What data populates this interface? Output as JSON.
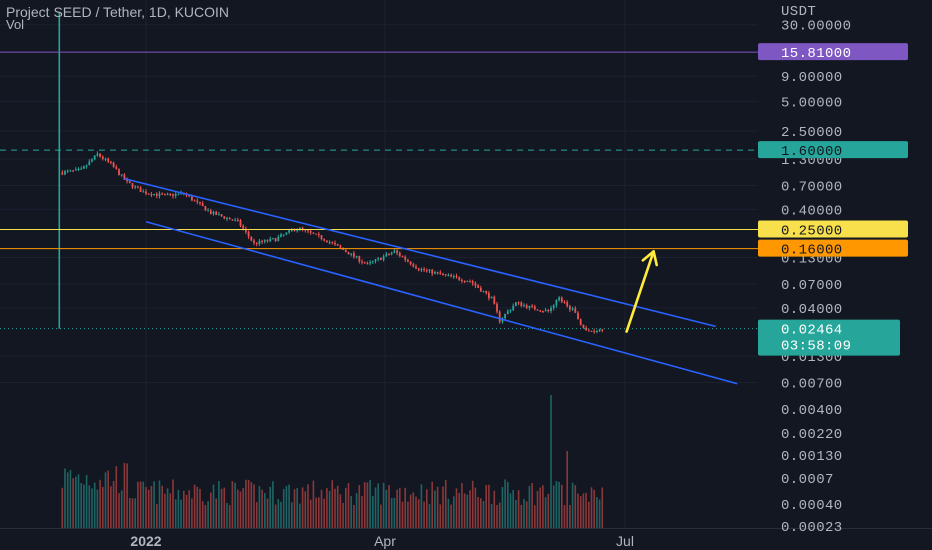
{
  "header": {
    "title": "Project SEED / Tether, 1D, KUCOIN",
    "volume_label": "Vol"
  },
  "colors": {
    "background": "#131722",
    "up_candle": "#26a69a",
    "down_candle": "#ef5350",
    "channel": "#2962ff",
    "arrow": "#ffeb3b",
    "line_15_81": "#7e57c2",
    "line_1_6": "#26a69a",
    "line_0_25": "#f7e04b",
    "line_0_16": "#ff9800"
  },
  "chart_data": {
    "type": "candlestick",
    "symbol": "Project SEED / Tether",
    "interval": "1D",
    "exchange": "KUCOIN",
    "y_scale": "log",
    "y_unit": "USDT",
    "y_ticks": [
      "30.00000",
      "9.00000",
      "5.00000",
      "2.50000",
      "1.30000",
      "0.70000",
      "0.40000",
      "0.13000",
      "0.07000",
      "0.04000",
      "0.01300",
      "0.00700"
    ],
    "volume_ticks": [
      "0.00400",
      "0.00220",
      "0.00130",
      "0.0007",
      "0.00040",
      "0.00023"
    ],
    "x_ticks": [
      "2022",
      "Apr",
      "Jul"
    ],
    "price_path_anchors": [
      {
        "date": "2021-12-01",
        "price": 0.95
      },
      {
        "date": "2021-12-08",
        "price": 1.0
      },
      {
        "date": "2021-12-14",
        "price": 1.45
      },
      {
        "date": "2021-12-19",
        "price": 1.15
      },
      {
        "date": "2021-12-25",
        "price": 0.75
      },
      {
        "date": "2021-12-31",
        "price": 0.6
      },
      {
        "date": "2022-01-08",
        "price": 0.55
      },
      {
        "date": "2022-01-15",
        "price": 0.58
      },
      {
        "date": "2022-01-25",
        "price": 0.37
      },
      {
        "date": "2022-02-04",
        "price": 0.3
      },
      {
        "date": "2022-02-10",
        "price": 0.18
      },
      {
        "date": "2022-02-18",
        "price": 0.2
      },
      {
        "date": "2022-02-26",
        "price": 0.26
      },
      {
        "date": "2022-03-08",
        "price": 0.2
      },
      {
        "date": "2022-03-16",
        "price": 0.15
      },
      {
        "date": "2022-03-24",
        "price": 0.11
      },
      {
        "date": "2022-04-03",
        "price": 0.15
      },
      {
        "date": "2022-04-12",
        "price": 0.1
      },
      {
        "date": "2022-04-22",
        "price": 0.085
      },
      {
        "date": "2022-05-01",
        "price": 0.075
      },
      {
        "date": "2022-05-09",
        "price": 0.05
      },
      {
        "date": "2022-05-12",
        "price": 0.03
      },
      {
        "date": "2022-05-18",
        "price": 0.045
      },
      {
        "date": "2022-05-24",
        "price": 0.04
      },
      {
        "date": "2022-05-30",
        "price": 0.037
      },
      {
        "date": "2022-06-03",
        "price": 0.05
      },
      {
        "date": "2022-06-08",
        "price": 0.038
      },
      {
        "date": "2022-06-13",
        "price": 0.023
      },
      {
        "date": "2022-06-19",
        "price": 0.0246
      }
    ],
    "volume_spikes": [
      {
        "date": "2022-05-31",
        "volume": 0.0035
      },
      {
        "date": "2022-06-06",
        "volume": 0.0016
      }
    ],
    "horizontal_lines": [
      {
        "price": 15.81,
        "label": "15.81000",
        "color": "#7e57c2",
        "style": "solid"
      },
      {
        "price": 1.6,
        "label": "1.60000",
        "color": "#26a69a",
        "style": "dashed"
      },
      {
        "price": 0.25,
        "label": "0.25000",
        "color": "#f7e04b",
        "style": "solid"
      },
      {
        "price": 0.16,
        "label": "0.16000",
        "color": "#ff9800",
        "style": "solid"
      }
    ],
    "last_price": {
      "price": 0.02464,
      "label": "0.02464",
      "countdown": "03:58:09"
    },
    "channel": {
      "upper": [
        {
          "date": "2021-12-24",
          "price": 0.82
        },
        {
          "date": "2022-07-31",
          "price": 0.026
        }
      ],
      "lower": [
        {
          "date": "2022-01-01",
          "price": 0.3
        },
        {
          "date": "2022-08-08",
          "price": 0.0068
        }
      ]
    },
    "arrow": {
      "from": {
        "date": "2022-06-28",
        "price": 0.023
      },
      "to": {
        "date": "2022-07-08",
        "price": 0.15
      }
    }
  }
}
